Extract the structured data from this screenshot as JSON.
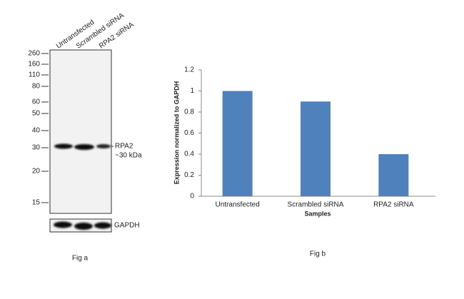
{
  "blot": {
    "lanes": [
      "Untransfected",
      "Scrambled siRNA",
      "RPA2 siRNA"
    ],
    "markers": [
      260,
      160,
      110,
      80,
      60,
      50,
      40,
      30,
      20,
      15
    ],
    "band_label": "RPA2",
    "band_size": "~30 kDa",
    "loading_control": "GAPDH",
    "caption": "Fig a"
  },
  "chart_data": {
    "type": "bar",
    "caption": "Fig b",
    "categories": [
      "Untransfected",
      "Scrambled siRNA",
      "RPA2 siRNA"
    ],
    "values": [
      1,
      0.9,
      0.4
    ],
    "color": "#4f81bd",
    "ylabel": "Expression normalized to GAPDH",
    "xlabel": "Samples",
    "ylim": [
      0,
      1.2
    ],
    "yticks": [
      0,
      0.2,
      0.4,
      0.6,
      0.8,
      1,
      1.2
    ],
    "grid": false
  }
}
